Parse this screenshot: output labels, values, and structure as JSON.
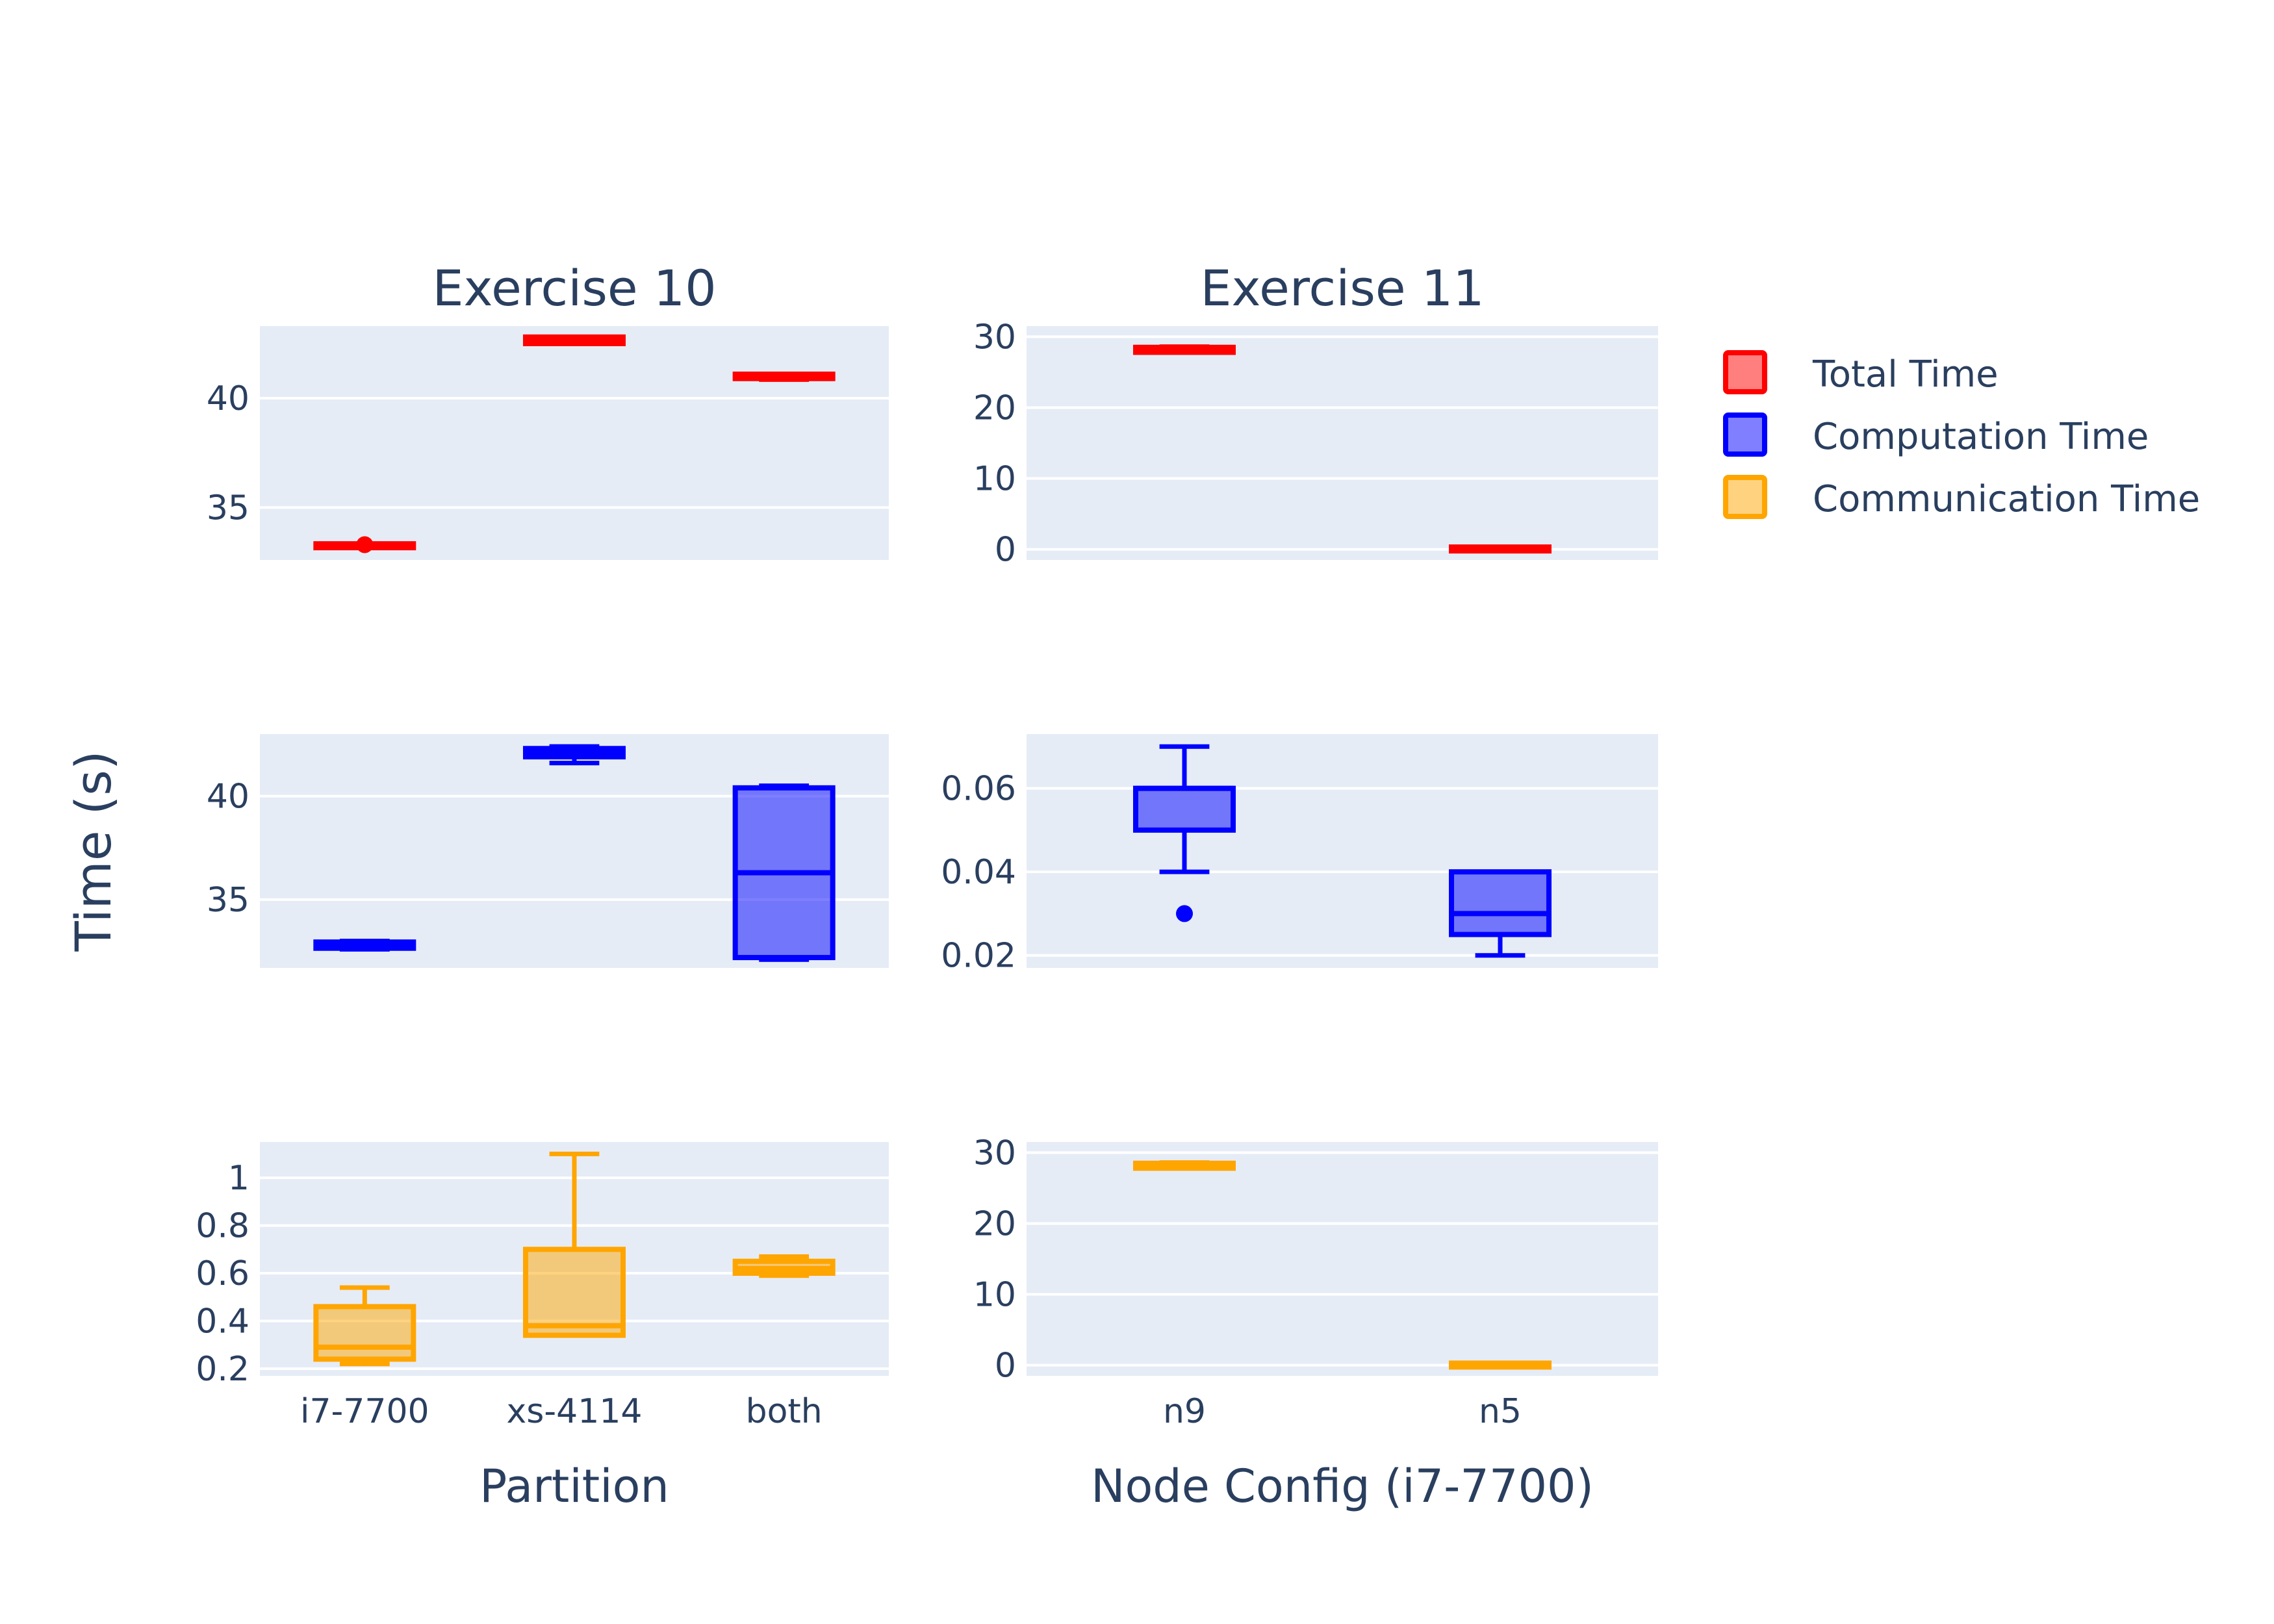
{
  "colors": {
    "total": "#ff0000",
    "computation": "#0000ff",
    "communication": "#ffa500",
    "plot_bg": "#e5ecf6",
    "grid": "#ffffff",
    "text": "#2a3f5f"
  },
  "chart_data": {
    "type": "box",
    "y_axis_title": "Time (s)",
    "legend": {
      "placement": "top-right",
      "items": [
        {
          "label": "Total Time",
          "color": "#ff0000"
        },
        {
          "label": "Computation Time",
          "color": "#0000ff"
        },
        {
          "label": "Communication Time",
          "color": "#ffa500"
        }
      ]
    },
    "columns": [
      {
        "title": "Exercise 10",
        "xlabel": "Partition",
        "categories": [
          "i7-7700",
          "xs-4114",
          "both"
        ]
      },
      {
        "title": "Exercise 11",
        "xlabel": "Node Config (i7-7700)",
        "categories": [
          "n9",
          "n5"
        ]
      }
    ],
    "panels": [
      {
        "id": "ex10-total",
        "series": "Total Time",
        "color": "#ff0000",
        "ylim": [
          32.6,
          43.3
        ],
        "yticks": [
          35,
          40
        ],
        "tick_labels": [
          "35",
          "40"
        ],
        "boxes": [
          {
            "x": "i7-7700",
            "min": 33.15,
            "q1": 33.15,
            "median": 33.2,
            "q3": 33.25,
            "max": 33.25,
            "outliers": [
              33.3
            ]
          },
          {
            "x": "xs-4114",
            "min": 42.5,
            "q1": 42.5,
            "median": 42.65,
            "q3": 42.8,
            "max": 42.8,
            "outliers": []
          },
          {
            "x": "both",
            "min": 40.85,
            "q1": 40.9,
            "median": 41.0,
            "q3": 41.1,
            "max": 41.1,
            "outliers": []
          }
        ]
      },
      {
        "id": "ex11-total",
        "series": "Total Time",
        "color": "#ff0000",
        "ylim": [
          -1.5,
          31.5
        ],
        "yticks": [
          0,
          10,
          20,
          30
        ],
        "tick_labels": [
          "0",
          "10",
          "20",
          "30"
        ],
        "boxes": [
          {
            "x": "n9",
            "min": 27.8,
            "q1": 27.8,
            "median": 28.1,
            "q3": 28.5,
            "max": 28.6,
            "outliers": []
          },
          {
            "x": "n5",
            "min": 0.03,
            "q1": 0.03,
            "median": 0.04,
            "q3": 0.05,
            "max": 0.05,
            "outliers": []
          }
        ]
      },
      {
        "id": "ex10-comp",
        "series": "Computation Time",
        "color": "#0000ff",
        "ylim": [
          31.7,
          43.0
        ],
        "yticks": [
          35,
          40
        ],
        "tick_labels": [
          "35",
          "40"
        ],
        "boxes": [
          {
            "x": "i7-7700",
            "min": 32.6,
            "q1": 32.65,
            "median": 32.8,
            "q3": 32.95,
            "max": 33.0,
            "outliers": []
          },
          {
            "x": "xs-4114",
            "min": 41.6,
            "q1": 41.9,
            "median": 42.1,
            "q3": 42.3,
            "max": 42.4,
            "outliers": []
          },
          {
            "x": "both",
            "min": 32.1,
            "q1": 32.2,
            "median": 36.3,
            "q3": 40.4,
            "max": 40.5,
            "outliers": []
          }
        ]
      },
      {
        "id": "ex11-comp",
        "series": "Computation Time",
        "color": "#0000ff",
        "ylim": [
          0.017,
          0.073
        ],
        "yticks": [
          0.02,
          0.04,
          0.06
        ],
        "tick_labels": [
          "0.02",
          "0.04",
          "0.06"
        ],
        "boxes": [
          {
            "x": "n9",
            "min": 0.04,
            "q1": 0.05,
            "median": 0.06,
            "q3": 0.06,
            "max": 0.07,
            "outliers": [
              0.03
            ]
          },
          {
            "x": "n5",
            "min": 0.02,
            "q1": 0.025,
            "median": 0.03,
            "q3": 0.04,
            "max": 0.04,
            "outliers": []
          }
        ]
      },
      {
        "id": "ex10-comm",
        "series": "Communication Time",
        "color": "#ffa500",
        "ylim": [
          0.17,
          1.15
        ],
        "yticks": [
          0.2,
          0.4,
          0.6,
          0.8,
          1.0
        ],
        "tick_labels": [
          "0.2",
          "0.4",
          "0.6",
          "0.8",
          "1"
        ],
        "boxes": [
          {
            "x": "i7-7700",
            "min": 0.22,
            "q1": 0.24,
            "median": 0.29,
            "q3": 0.46,
            "max": 0.54,
            "outliers": []
          },
          {
            "x": "xs-4114",
            "min": 0.34,
            "q1": 0.34,
            "median": 0.38,
            "q3": 0.7,
            "max": 1.1,
            "outliers": []
          },
          {
            "x": "both",
            "min": 0.59,
            "q1": 0.6,
            "median": 0.62,
            "q3": 0.65,
            "max": 0.67,
            "outliers": []
          }
        ]
      },
      {
        "id": "ex11-comm",
        "series": "Communication Time",
        "color": "#ffa500",
        "ylim": [
          -1.5,
          31.5
        ],
        "yticks": [
          0,
          10,
          20,
          30
        ],
        "tick_labels": [
          "0",
          "10",
          "20",
          "30"
        ],
        "boxes": [
          {
            "x": "n9",
            "min": 27.8,
            "q1": 27.8,
            "median": 28.1,
            "q3": 28.5,
            "max": 28.6,
            "outliers": []
          },
          {
            "x": "n5",
            "min": 0.0,
            "q1": 0.0,
            "median": 0.01,
            "q3": 0.02,
            "max": 0.02,
            "outliers": []
          }
        ]
      }
    ]
  }
}
